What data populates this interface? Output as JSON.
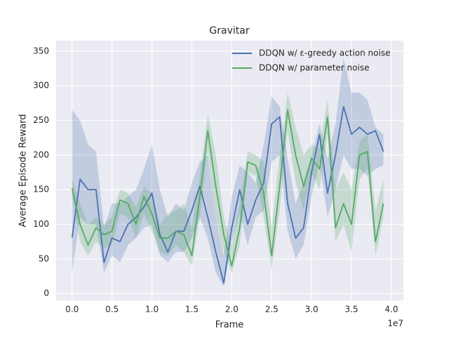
{
  "chart_data": {
    "type": "line",
    "title": "Gravitar",
    "xlabel": "Frame",
    "ylabel": "Average Episode Reward",
    "x_offset_label": "1e7",
    "x": [
      0.0,
      0.1,
      0.2,
      0.3,
      0.4,
      0.5,
      0.6,
      0.7,
      0.8,
      0.9,
      1.0,
      1.1,
      1.2,
      1.3,
      1.4,
      1.5,
      1.6,
      1.7,
      1.8,
      1.9,
      2.0,
      2.1,
      2.2,
      2.3,
      2.4,
      2.5,
      2.6,
      2.7,
      2.8,
      2.9,
      3.0,
      3.1,
      3.2,
      3.3,
      3.4,
      3.5,
      3.6,
      3.7,
      3.8,
      3.9
    ],
    "series": [
      {
        "name": "DDQN w/ ε-greedy action noise",
        "color": "#4c72b0",
        "values": [
          81,
          165,
          150,
          150,
          45,
          80,
          75,
          100,
          110,
          125,
          145,
          85,
          60,
          90,
          90,
          120,
          155,
          110,
          60,
          15,
          95,
          150,
          100,
          135,
          160,
          245,
          255,
          130,
          80,
          95,
          175,
          230,
          145,
          200,
          270,
          230,
          240,
          230,
          235,
          205
        ],
        "upper": [
          265,
          250,
          215,
          205,
          95,
          130,
          130,
          140,
          150,
          180,
          215,
          150,
          110,
          130,
          120,
          160,
          190,
          200,
          110,
          55,
          140,
          185,
          175,
          160,
          215,
          285,
          270,
          195,
          130,
          160,
          200,
          245,
          195,
          245,
          340,
          290,
          290,
          280,
          240,
          230
        ],
        "lower": [
          30,
          110,
          100,
          100,
          30,
          55,
          45,
          70,
          80,
          95,
          100,
          55,
          45,
          60,
          60,
          80,
          110,
          80,
          30,
          10,
          75,
          115,
          70,
          110,
          120,
          190,
          200,
          90,
          50,
          70,
          140,
          190,
          110,
          150,
          200,
          180,
          180,
          170,
          180,
          185
        ]
      },
      {
        "name": "DDQN w/ parameter noise",
        "color": "#55a868",
        "values": [
          152,
          100,
          70,
          95,
          85,
          90,
          135,
          130,
          100,
          140,
          115,
          80,
          80,
          90,
          85,
          55,
          140,
          235,
          155,
          85,
          40,
          95,
          190,
          185,
          145,
          55,
          155,
          265,
          200,
          155,
          195,
          180,
          255,
          95,
          130,
          100,
          200,
          205,
          75,
          130
        ],
        "upper": [
          165,
          130,
          100,
          110,
          100,
          110,
          150,
          145,
          125,
          155,
          145,
          100,
          115,
          120,
          130,
          95,
          170,
          260,
          200,
          110,
          70,
          130,
          205,
          200,
          190,
          95,
          200,
          290,
          240,
          200,
          215,
          210,
          280,
          150,
          175,
          150,
          220,
          230,
          120,
          165
        ],
        "lower": [
          140,
          75,
          55,
          75,
          65,
          70,
          115,
          110,
          80,
          115,
          90,
          60,
          55,
          70,
          60,
          40,
          110,
          205,
          110,
          60,
          30,
          70,
          175,
          170,
          110,
          35,
          120,
          235,
          160,
          120,
          175,
          150,
          230,
          75,
          100,
          60,
          165,
          180,
          55,
          110
        ]
      }
    ],
    "xlim": [
      -0.2,
      4.15
    ],
    "xticks": [
      {
        "value": 0,
        "label": "0.0"
      },
      {
        "value": 0.5,
        "label": "0.5"
      },
      {
        "value": 1,
        "label": "1.0"
      },
      {
        "value": 1.5,
        "label": "1.5"
      },
      {
        "value": 2,
        "label": "2.0"
      },
      {
        "value": 2.5,
        "label": "2.5"
      },
      {
        "value": 3,
        "label": "3.0"
      },
      {
        "value": 3.5,
        "label": "3.5"
      },
      {
        "value": 4,
        "label": "4.0"
      }
    ],
    "ylim": [
      -10,
      365
    ],
    "yticks": [
      0,
      50,
      100,
      150,
      200,
      250,
      300,
      350
    ],
    "grid": true,
    "legend": "upper right"
  }
}
